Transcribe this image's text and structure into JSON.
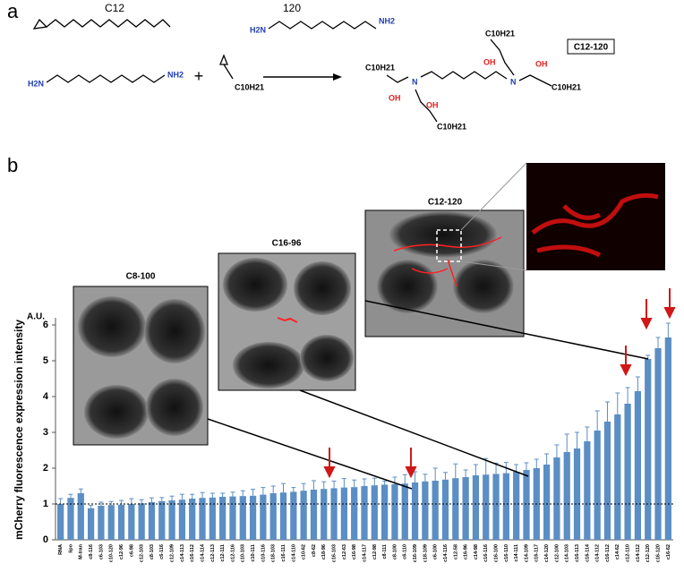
{
  "panel_a": {
    "label": "a",
    "reagent1": "C12",
    "reagent2": "120",
    "amine_left": "H2N",
    "amine_right": "NH2",
    "plus": "+",
    "tail": "C10H21",
    "product": "C12-120",
    "hydroxyl": "OH",
    "nitrogen": "N"
  },
  "panel_b": {
    "label": "b",
    "insets": [
      "C8-100",
      "C16-96",
      "C12-120"
    ]
  },
  "chart_data": {
    "type": "bar",
    "ylabel": "mCherry fluorescence  expression intensity",
    "yunit": "A.U.",
    "categories": [
      "RNA",
      "lipo",
      "M-tran",
      "c8-116",
      "c6-103",
      "c10-120",
      "c12-96",
      "c6-98",
      "c12-103",
      "c8-103",
      "c6-116",
      "c12-109",
      "c14-113",
      "c16-112",
      "c14-114",
      "c12-113",
      "c12-111",
      "c12-116",
      "c10-103",
      "c10-111",
      "c10-116",
      "c18-103",
      "c16-111",
      "c14-110",
      "c10-62",
      "c8-62",
      "c18-96",
      "c16-103",
      "c12-63",
      "c16-98",
      "c14-117",
      "c12-98",
      "c8-111",
      "c8-100",
      "c6-110",
      "c16-109",
      "c18-109",
      "c6-100",
      "c14-116",
      "c12-58",
      "c16-96",
      "c14-98",
      "c16-116",
      "c16-100",
      "c16-110",
      "c14-111",
      "c14-109",
      "c16-117",
      "c14-120",
      "c12-100",
      "c14-103",
      "c16-113",
      "c16-114",
      "c14-112",
      "c16-112",
      "c14-62",
      "c12-110",
      "c14-112",
      "c12-120",
      "c16-120",
      "c16-62"
    ],
    "values": [
      1.0,
      1.17,
      1.3,
      0.88,
      0.95,
      0.97,
      0.98,
      1.0,
      1.02,
      1.05,
      1.08,
      1.1,
      1.12,
      1.15,
      1.17,
      1.18,
      1.2,
      1.21,
      1.22,
      1.23,
      1.26,
      1.3,
      1.32,
      1.34,
      1.37,
      1.4,
      1.42,
      1.44,
      1.46,
      1.47,
      1.5,
      1.52,
      1.54,
      1.55,
      1.57,
      1.6,
      1.63,
      1.65,
      1.68,
      1.72,
      1.75,
      1.8,
      1.82,
      1.84,
      1.86,
      1.9,
      1.95,
      2.0,
      2.1,
      2.3,
      2.45,
      2.55,
      2.75,
      3.05,
      3.3,
      3.5,
      3.8,
      4.15,
      5.05,
      5.35,
      5.65
    ],
    "errors": [
      0.15,
      0.1,
      0.12,
      0.08,
      0.1,
      0.1,
      0.12,
      0.15,
      0.1,
      0.12,
      0.1,
      0.12,
      0.15,
      0.12,
      0.15,
      0.12,
      0.1,
      0.12,
      0.15,
      0.18,
      0.2,
      0.2,
      0.25,
      0.12,
      0.2,
      0.25,
      0.2,
      0.2,
      0.25,
      0.2,
      0.2,
      0.2,
      0.1,
      0.2,
      0.25,
      0.3,
      0.2,
      0.35,
      0.2,
      0.4,
      0.2,
      0.3,
      0.45,
      0.3,
      0.3,
      0.2,
      0.2,
      0.25,
      0.3,
      0.35,
      0.5,
      0.45,
      0.4,
      0.55,
      0.55,
      0.6,
      0.45,
      0.4,
      0.1,
      0.3,
      0.4
    ],
    "color": "#5b8ec4",
    "ylim": [
      0,
      6.2
    ],
    "yticks": [
      0,
      1,
      2,
      3,
      4,
      5,
      6
    ],
    "reference_line": 1
  }
}
